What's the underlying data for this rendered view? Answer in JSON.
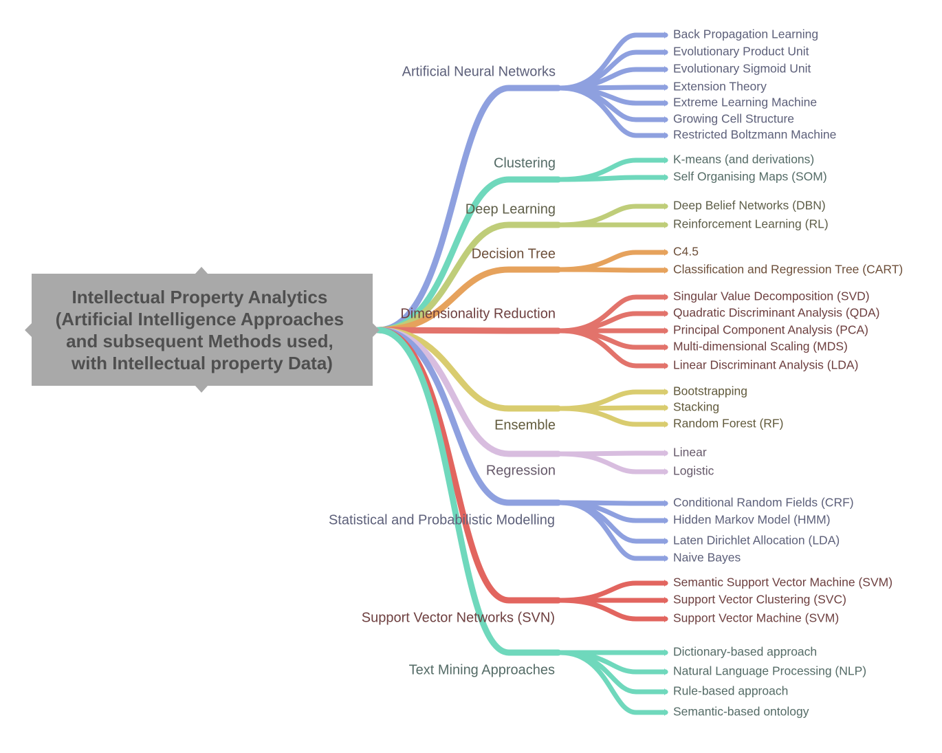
{
  "root": {
    "lines": [
      "Intellectual Property Analytics",
      "(Artificial Intelligence Approaches",
      "and subsequent Methods used,",
      "with Intellectual property Data)"
    ],
    "box_color": "#a9a9a9",
    "text_color": "#4f4f4f"
  },
  "branches": [
    {
      "label": "Artificial Neural Networks",
      "color": "#8ea0df",
      "text_color": "#5d607a",
      "children": [
        "Back Propagation Learning",
        "Evolutionary Product Unit",
        "Evolutionary Sigmoid Unit",
        "Extension Theory",
        "Extreme Learning Machine",
        "Growing Cell Structure",
        "Restricted Boltzmann Machine"
      ]
    },
    {
      "label": "Clustering",
      "color": "#6fd8bc",
      "text_color": "#546b66",
      "children": [
        "K-means (and derivations)",
        "Self Organising Maps (SOM)"
      ]
    },
    {
      "label": "Deep Learning",
      "color": "#bfcd79",
      "text_color": "#5e5e48",
      "children": [
        "Deep Belief Networks (DBN)",
        "Reinforcement Learning (RL)"
      ]
    },
    {
      "label": "Decision Tree",
      "color": "#e6a25c",
      "text_color": "#6d4f3a",
      "children": [
        "C4.5",
        "Classification and Regression Tree (CART)"
      ]
    },
    {
      "label": "Dimensionality Reduction",
      "color": "#e2736b",
      "text_color": "#6d3f3f",
      "children": [
        "Singular Value Decomposition (SVD)",
        "Quadratic Discriminant Analysis (QDA)",
        "Principal Component Analysis (PCA)",
        "Multi-dimensional Scaling (MDS)",
        "Linear Discriminant Analysis (LDA)"
      ]
    },
    {
      "label": "Ensemble",
      "color": "#d9cc6f",
      "text_color": "#615a3c",
      "children": [
        "Bootstrapping",
        "Stacking",
        "Random Forest (RF)"
      ]
    },
    {
      "label": "Regression",
      "color": "#d8bddf",
      "text_color": "#66596a",
      "children": [
        "Linear",
        "Logistic"
      ]
    },
    {
      "label": "Statistical and Probabilistic Modelling",
      "color": "#8ea0df",
      "text_color": "#5d607a",
      "children": [
        "Conditional Random Fields (CRF)",
        "Hidden Markov Model (HMM)",
        "Laten Dirichlet Allocation (LDA)",
        "Naive Bayes"
      ]
    },
    {
      "label": "Support Vector Networks (SVN)",
      "color": "#e2655f",
      "text_color": "#6d3f3f",
      "children": [
        "Semantic Support Vector Machine (SVM)",
        "Support Vector Clustering (SVC)",
        "Support Vector Machine (SVM)"
      ]
    },
    {
      "label": "Text Mining Approaches",
      "color": "#6fd8bc",
      "text_color": "#546b66",
      "children": [
        "Dictionary-based approach",
        "Natural Language Processing (NLP)",
        "Rule-based approach",
        "Semantic-based ontology"
      ]
    }
  ]
}
